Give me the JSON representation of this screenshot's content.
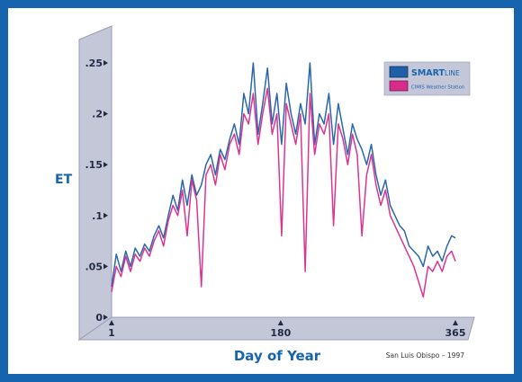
{
  "chart_data": {
    "type": "line",
    "title": "",
    "xlabel": "Day of Year",
    "ylabel": "ET",
    "xlim": [
      1,
      365
    ],
    "ylim": [
      0,
      0.25
    ],
    "x_ticks": [
      {
        "value": 1,
        "label": "1"
      },
      {
        "value": 180,
        "label": "180"
      },
      {
        "value": 365,
        "label": "365"
      }
    ],
    "y_ticks": [
      {
        "value": 0,
        "label": "0"
      },
      {
        "value": 0.05,
        "label": ".05"
      },
      {
        "value": 0.1,
        "label": ".1"
      },
      {
        "value": 0.15,
        "label": ".15"
      },
      {
        "value": 0.2,
        "label": ".2"
      },
      {
        "value": 0.25,
        "label": ".25"
      }
    ],
    "legend": {
      "placement": "top-right"
    },
    "series": [
      {
        "name_parts": [
          "SMART",
          "LINE"
        ],
        "color": "#1f5fa8",
        "points": [
          [
            1,
            0.03
          ],
          [
            6,
            0.062
          ],
          [
            11,
            0.045
          ],
          [
            16,
            0.065
          ],
          [
            21,
            0.05
          ],
          [
            26,
            0.068
          ],
          [
            31,
            0.06
          ],
          [
            36,
            0.072
          ],
          [
            41,
            0.065
          ],
          [
            46,
            0.08
          ],
          [
            51,
            0.09
          ],
          [
            56,
            0.078
          ],
          [
            61,
            0.1
          ],
          [
            66,
            0.12
          ],
          [
            71,
            0.105
          ],
          [
            76,
            0.135
          ],
          [
            81,
            0.11
          ],
          [
            86,
            0.14
          ],
          [
            91,
            0.12
          ],
          [
            96,
            0.13
          ],
          [
            101,
            0.15
          ],
          [
            106,
            0.16
          ],
          [
            111,
            0.14
          ],
          [
            116,
            0.165
          ],
          [
            121,
            0.155
          ],
          [
            126,
            0.175
          ],
          [
            131,
            0.19
          ],
          [
            136,
            0.17
          ],
          [
            141,
            0.22
          ],
          [
            146,
            0.2
          ],
          [
            151,
            0.25
          ],
          [
            156,
            0.18
          ],
          [
            161,
            0.21
          ],
          [
            166,
            0.245
          ],
          [
            171,
            0.19
          ],
          [
            176,
            0.22
          ],
          [
            181,
            0.17
          ],
          [
            186,
            0.23
          ],
          [
            191,
            0.2
          ],
          [
            196,
            0.18
          ],
          [
            201,
            0.21
          ],
          [
            206,
            0.19
          ],
          [
            211,
            0.25
          ],
          [
            216,
            0.17
          ],
          [
            221,
            0.2
          ],
          [
            226,
            0.19
          ],
          [
            231,
            0.22
          ],
          [
            236,
            0.17
          ],
          [
            241,
            0.21
          ],
          [
            246,
            0.185
          ],
          [
            251,
            0.16
          ],
          [
            256,
            0.19
          ],
          [
            261,
            0.175
          ],
          [
            266,
            0.165
          ],
          [
            271,
            0.15
          ],
          [
            276,
            0.17
          ],
          [
            281,
            0.14
          ],
          [
            286,
            0.12
          ],
          [
            291,
            0.135
          ],
          [
            296,
            0.11
          ],
          [
            301,
            0.1
          ],
          [
            306,
            0.09
          ],
          [
            311,
            0.085
          ],
          [
            316,
            0.07
          ],
          [
            321,
            0.065
          ],
          [
            326,
            0.06
          ],
          [
            331,
            0.05
          ],
          [
            336,
            0.07
          ],
          [
            341,
            0.06
          ],
          [
            346,
            0.065
          ],
          [
            351,
            0.055
          ],
          [
            356,
            0.07
          ],
          [
            361,
            0.08
          ],
          [
            365,
            0.078
          ]
        ]
      },
      {
        "name": "CIMIS Weather Station",
        "color": "#d92a8c",
        "points": [
          [
            1,
            0.025
          ],
          [
            6,
            0.05
          ],
          [
            11,
            0.04
          ],
          [
            16,
            0.06
          ],
          [
            21,
            0.045
          ],
          [
            26,
            0.062
          ],
          [
            31,
            0.055
          ],
          [
            36,
            0.068
          ],
          [
            41,
            0.06
          ],
          [
            46,
            0.075
          ],
          [
            51,
            0.085
          ],
          [
            56,
            0.07
          ],
          [
            61,
            0.095
          ],
          [
            66,
            0.11
          ],
          [
            71,
            0.1
          ],
          [
            76,
            0.125
          ],
          [
            81,
            0.08
          ],
          [
            86,
            0.135
          ],
          [
            91,
            0.115
          ],
          [
            96,
            0.03
          ],
          [
            101,
            0.14
          ],
          [
            106,
            0.15
          ],
          [
            111,
            0.13
          ],
          [
            116,
            0.16
          ],
          [
            121,
            0.145
          ],
          [
            126,
            0.17
          ],
          [
            131,
            0.18
          ],
          [
            136,
            0.16
          ],
          [
            141,
            0.2
          ],
          [
            146,
            0.19
          ],
          [
            151,
            0.22
          ],
          [
            156,
            0.17
          ],
          [
            161,
            0.2
          ],
          [
            166,
            0.225
          ],
          [
            171,
            0.18
          ],
          [
            176,
            0.2
          ],
          [
            181,
            0.08
          ],
          [
            186,
            0.21
          ],
          [
            191,
            0.19
          ],
          [
            196,
            0.17
          ],
          [
            201,
            0.2
          ],
          [
            206,
            0.045
          ],
          [
            211,
            0.22
          ],
          [
            216,
            0.16
          ],
          [
            221,
            0.19
          ],
          [
            226,
            0.18
          ],
          [
            231,
            0.2
          ],
          [
            236,
            0.09
          ],
          [
            241,
            0.19
          ],
          [
            246,
            0.175
          ],
          [
            251,
            0.15
          ],
          [
            256,
            0.18
          ],
          [
            261,
            0.16
          ],
          [
            266,
            0.08
          ],
          [
            271,
            0.14
          ],
          [
            276,
            0.16
          ],
          [
            281,
            0.13
          ],
          [
            286,
            0.11
          ],
          [
            291,
            0.125
          ],
          [
            296,
            0.1
          ],
          [
            301,
            0.09
          ],
          [
            306,
            0.08
          ],
          [
            311,
            0.07
          ],
          [
            316,
            0.06
          ],
          [
            321,
            0.05
          ],
          [
            326,
            0.035
          ],
          [
            331,
            0.02
          ],
          [
            336,
            0.05
          ],
          [
            341,
            0.045
          ],
          [
            346,
            0.055
          ],
          [
            351,
            0.045
          ],
          [
            356,
            0.06
          ],
          [
            361,
            0.065
          ],
          [
            365,
            0.055
          ]
        ]
      }
    ]
  },
  "annotation": "San Luis Obispo – 1997",
  "colors": {
    "frame": "#1664ad",
    "axis_fill": "#c4c7d8",
    "axis_stroke": "#9a9db5"
  }
}
